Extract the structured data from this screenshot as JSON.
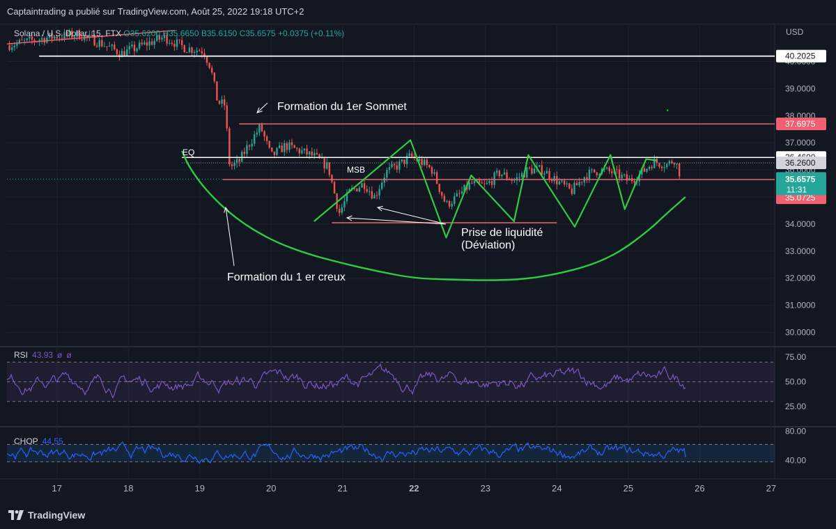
{
  "header": {
    "publish_line": "Captaintrading a publié sur TradingView.com, Août 25, 2022 19:18 UTC+2"
  },
  "symbol_line": {
    "symbol": "Solana / U.S. Dollar, 15, FTX",
    "open": "O35.6200",
    "high": "H35.6650",
    "low": "B35.6150",
    "close": "C35.6575",
    "change": "+0.0375 (+0.11%)"
  },
  "currency_label": "USD",
  "colors": {
    "background": "#131722",
    "candle_up": "#26a69a",
    "candle_down": "#ef5350",
    "green_drawing": "#2ecc40",
    "red_level": "#f06070",
    "white_level": "#ffffff",
    "rsi_line": "#7e57c2",
    "chop_line": "#2962ff"
  },
  "chart_data": [
    {
      "type": "candlestick",
      "title": "Solana / U.S. Dollar, 15, FTX",
      "x_ticks": [
        "17",
        "18",
        "19",
        "20",
        "21",
        "22",
        "23",
        "24",
        "25",
        "26",
        "27"
      ],
      "x_range": [
        16.3,
        27.05
      ],
      "y_ticks": [
        "40.0000",
        "39.0000",
        "38.0000",
        "37.0000",
        "36.0000",
        "35.0000",
        "34.0000",
        "33.0000",
        "32.0000",
        "31.0000",
        "30.0000"
      ],
      "ylim": [
        29.5,
        41.4
      ],
      "price_path": [
        [
          16.3,
          40.6
        ],
        [
          16.9,
          40.9
        ],
        [
          17.3,
          41.0
        ],
        [
          17.6,
          40.7
        ],
        [
          17.9,
          40.3
        ],
        [
          18.2,
          40.6
        ],
        [
          18.5,
          40.9
        ],
        [
          18.8,
          40.5
        ],
        [
          19.05,
          40.4
        ],
        [
          19.15,
          39.8
        ],
        [
          19.25,
          38.5
        ],
        [
          19.35,
          38.4
        ],
        [
          19.42,
          36.1
        ],
        [
          19.55,
          36.3
        ],
        [
          19.7,
          37.0
        ],
        [
          19.85,
          37.6
        ],
        [
          20.0,
          36.5
        ],
        [
          20.2,
          36.9
        ],
        [
          20.4,
          36.7
        ],
        [
          20.6,
          36.5
        ],
        [
          20.8,
          36.1
        ],
        [
          20.95,
          34.4
        ],
        [
          21.1,
          35.2
        ],
        [
          21.3,
          35.5
        ],
        [
          21.45,
          35.0
        ],
        [
          21.6,
          35.9
        ],
        [
          21.8,
          36.2
        ],
        [
          21.95,
          36.5
        ],
        [
          22.1,
          36.3
        ],
        [
          22.25,
          36.0
        ],
        [
          22.45,
          34.7
        ],
        [
          22.6,
          35.0
        ],
        [
          22.8,
          35.5
        ],
        [
          23.0,
          35.4
        ],
        [
          23.2,
          35.9
        ],
        [
          23.4,
          35.6
        ],
        [
          23.6,
          36.0
        ],
        [
          23.8,
          36.0
        ],
        [
          24.0,
          35.6
        ],
        [
          24.2,
          35.2
        ],
        [
          24.4,
          35.8
        ],
        [
          24.6,
          36.0
        ],
        [
          24.8,
          35.9
        ],
        [
          25.0,
          35.6
        ],
        [
          25.15,
          35.8
        ],
        [
          25.35,
          36.3
        ],
        [
          25.55,
          36.2
        ],
        [
          25.65,
          36.4
        ],
        [
          25.75,
          35.66
        ]
      ],
      "horizontal_levels": [
        {
          "price": 40.2025,
          "label": "40.2025",
          "color": "#ffffff"
        },
        {
          "price": 37.6975,
          "label": "37.6975",
          "color": "#f06070"
        },
        {
          "price": 36.46,
          "label": "36.4600",
          "color": "#ffffff"
        },
        {
          "price": 36.26,
          "label": "36.2600",
          "color": "#d1d4dc"
        },
        {
          "price": 35.6575,
          "label": "35.6575",
          "color": "#26a69a"
        },
        {
          "price": 35.645,
          "label": "35.6450",
          "color": "#d1d4dc"
        },
        {
          "price": 35.0725,
          "label": "35.0725",
          "color": "#f06070"
        }
      ],
      "countdown": "11:31",
      "annotations": [
        {
          "text": "Formation du 1er Sommet"
        },
        {
          "text": "EQ"
        },
        {
          "text": "MSB"
        },
        {
          "text": "Prise de liquidité"
        },
        {
          "text": "(Déviation)"
        },
        {
          "text": "Formation du 1 er creux"
        }
      ]
    },
    {
      "type": "line",
      "title": "RSI",
      "legend": [
        "RSI",
        "43.93",
        "ø",
        "ø"
      ],
      "y_ticks": [
        "75.00",
        "50.00",
        "25.00"
      ],
      "ylim": [
        5,
        85
      ],
      "bands": [
        70,
        30
      ],
      "mean": 50,
      "last_value": 43.93
    },
    {
      "type": "line",
      "title": "CHOP",
      "legend": [
        "CHOP",
        "44.55"
      ],
      "y_ticks": [
        "80.00",
        "40.00"
      ],
      "ylim": [
        15,
        85
      ],
      "bands": [
        61.8,
        38.2
      ],
      "last_value": 44.55
    }
  ]
}
